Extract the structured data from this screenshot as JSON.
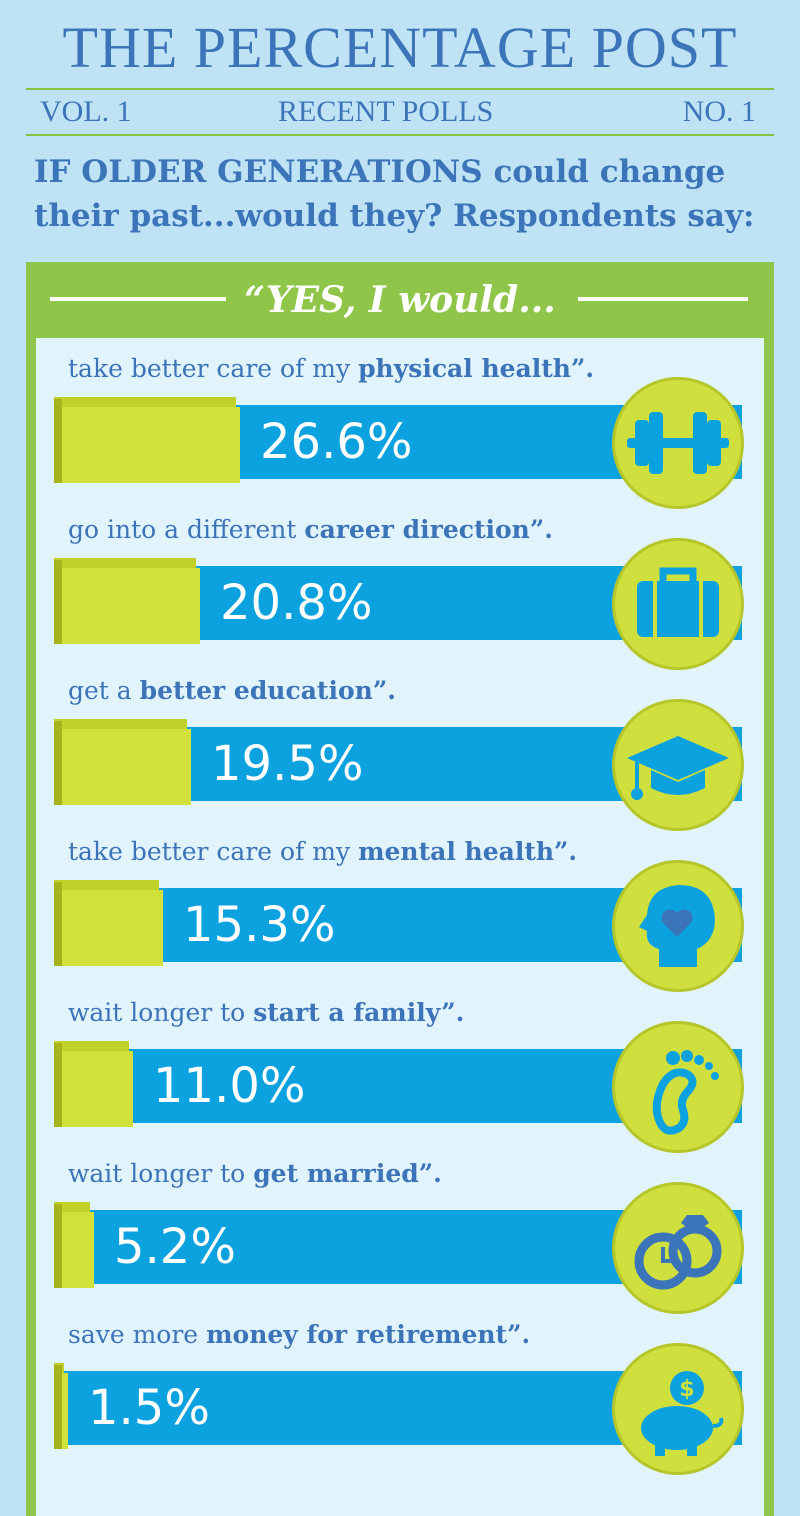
{
  "header": {
    "title": "THE PERCENTAGE POST",
    "vol": "VOL. 1",
    "section": "RECENT POLLS",
    "issue": "NO. 1"
  },
  "question": {
    "line1": "IF OLDER GENERATIONS could change",
    "line2": "their past...would they? Respondents say:"
  },
  "banner": "“YES, I would...",
  "colors": {
    "bar": "#0ba2df",
    "fill": "#d1e03a",
    "frame": "#8fc548",
    "text": "#3b74b8"
  },
  "chart_data": {
    "type": "bar",
    "title": "“YES, I would...",
    "categories": [
      "take better care of my physical health”.",
      "go into a different career direction”.",
      "get a better education”.",
      "take better care of my mental health”.",
      "wait longer to start a family”.",
      "wait longer to get married”.",
      "save more money for retirement”."
    ],
    "values": [
      26.6,
      20.8,
      19.5,
      15.3,
      11.0,
      5.2,
      1.5
    ],
    "value_labels": [
      "26.6%",
      "20.8%",
      "19.5%",
      "15.3%",
      "11.0%",
      "5.2%",
      "1.5%"
    ],
    "label_parts": [
      {
        "plain": "take better care of my ",
        "bold": "physical health",
        "end": "”."
      },
      {
        "plain": "go into a different ",
        "bold": "career direction",
        "end": "”."
      },
      {
        "plain": "get a ",
        "bold": "better education",
        "end": "”."
      },
      {
        "plain": "take better care of my ",
        "bold": "mental health",
        "end": "”."
      },
      {
        "plain": "wait longer to ",
        "bold": "start a family",
        "end": "”."
      },
      {
        "plain": "wait longer to ",
        "bold": "get married",
        "end": "”."
      },
      {
        "plain": "save more ",
        "bold": "money for retirement",
        "end": "”."
      }
    ],
    "icons": [
      "dumbbell-icon",
      "briefcase-icon",
      "graduation-cap-icon",
      "head-heart-icon",
      "footprint-icon",
      "rings-clock-icon",
      "piggy-bank-icon"
    ],
    "xlim": [
      0,
      100
    ]
  }
}
